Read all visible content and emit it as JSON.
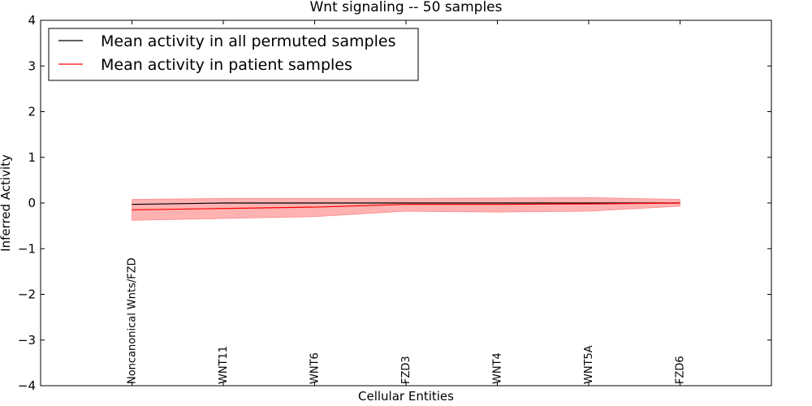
{
  "chart_data": {
    "type": "line",
    "title": "Wnt signaling -- 50 samples",
    "xlabel": "Cellular Entities",
    "ylabel": "Inferred Activity",
    "ylim": [
      -4,
      4
    ],
    "yticks": [
      4,
      3,
      2,
      1,
      0,
      -1,
      -2,
      -3,
      -4
    ],
    "ytick_labels": [
      "4",
      "3",
      "2",
      "1",
      "0",
      "−1",
      "−2",
      "−3",
      "−4"
    ],
    "categories": [
      "Noncanonical Wnts/FZD",
      "WNT11",
      "WNT6",
      "FZD3",
      "WNT4",
      "WNT5A",
      "FZD6"
    ],
    "series": [
      {
        "name": "Mean activity in all permuted samples",
        "color": "#000000",
        "values": [
          -0.03,
          0.0,
          0.0,
          0.0,
          0.0,
          0.0,
          0.0
        ]
      },
      {
        "name": "Mean activity in patient samples",
        "color": "#ff0000",
        "values": [
          -0.15,
          -0.12,
          -0.09,
          -0.03,
          -0.03,
          -0.02,
          0.0
        ],
        "band_lower": [
          -0.38,
          -0.34,
          -0.3,
          -0.18,
          -0.2,
          -0.18,
          -0.07
        ],
        "band_upper": [
          0.08,
          0.1,
          0.1,
          0.1,
          0.11,
          0.12,
          0.08
        ],
        "band_color": "#ff0000"
      }
    ],
    "legend_position": "top-left",
    "grid": false
  }
}
